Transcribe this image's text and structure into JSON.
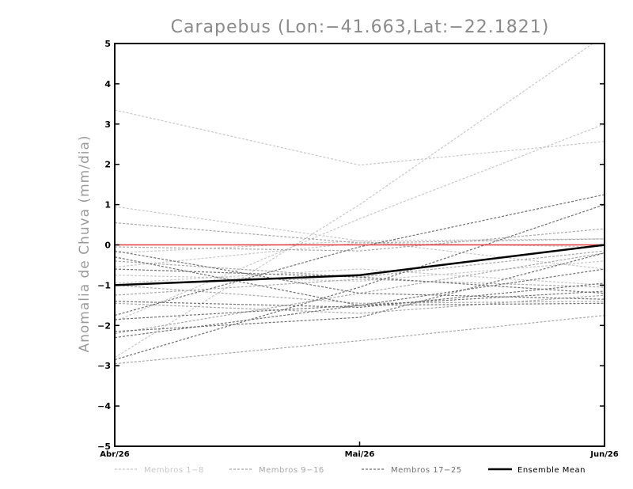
{
  "chart_data": {
    "type": "line",
    "title": "Carapebus (Lon:−41.663,Lat:−22.1821)",
    "ylabel": "Anomalia de Chuva (mm/dia)",
    "xlabel": "",
    "categories": [
      "Abr/26",
      "Mai/26",
      "Jun/26"
    ],
    "ylim": [
      -5,
      5
    ],
    "yticks": [
      -5,
      -4,
      -3,
      -2,
      -1,
      0,
      1,
      2,
      3,
      4,
      5
    ],
    "ytick_labels": [
      "−5",
      "−4",
      "−3",
      "−2",
      "−1",
      "0",
      "1",
      "2",
      "3",
      "4",
      "5"
    ],
    "grid": false,
    "zero_line_color": "#e63b3b",
    "group_colors": {
      "m1_8": "#c8c8c8",
      "m9_16": "#a8a8a8",
      "m17_25": "#707070",
      "mean": "#000000"
    },
    "legend": [
      {
        "name": "Membros 1−8",
        "group": "m1_8",
        "color": "#c8c8c8"
      },
      {
        "name": "Membros 9−16",
        "group": "m9_16",
        "color": "#a8a8a8"
      },
      {
        "name": "Membros 17−25",
        "group": "m17_25",
        "color": "#707070"
      },
      {
        "name": "Ensemble Mean",
        "group": "mean",
        "color": "#000000"
      }
    ],
    "series": [
      {
        "group": "m1_8",
        "values": [
          3.35,
          1.98,
          2.57
        ]
      },
      {
        "group": "m1_8",
        "values": [
          -2.8,
          1.0,
          5.2
        ]
      },
      {
        "group": "m1_8",
        "values": [
          -1.9,
          0.65,
          3.0
        ]
      },
      {
        "group": "m1_8",
        "values": [
          0.95,
          0.1,
          0.15
        ]
      },
      {
        "group": "m1_8",
        "values": [
          -0.2,
          0.1,
          -0.6
        ]
      },
      {
        "group": "m1_8",
        "values": [
          -0.75,
          -0.9,
          -0.4
        ]
      },
      {
        "group": "m1_8",
        "values": [
          -0.55,
          0.05,
          -0.05
        ]
      },
      {
        "group": "m1_8",
        "values": [
          -0.95,
          -0.6,
          -1.0
        ]
      },
      {
        "group": "m9_16",
        "values": [
          0.55,
          0.05,
          0.15
        ]
      },
      {
        "group": "m9_16",
        "values": [
          -2.95,
          -2.38,
          -1.75
        ]
      },
      {
        "group": "m9_16",
        "values": [
          -2.2,
          -1.2,
          -0.2
        ]
      },
      {
        "group": "m9_16",
        "values": [
          -1.25,
          -0.85,
          -1.05
        ]
      },
      {
        "group": "m9_16",
        "values": [
          -1.0,
          -1.45,
          -1.4
        ]
      },
      {
        "group": "m9_16",
        "values": [
          -0.05,
          -0.15,
          0.4
        ]
      },
      {
        "group": "m9_16",
        "values": [
          -1.45,
          -1.7,
          -1.25
        ]
      },
      {
        "group": "m9_16",
        "values": [
          -0.4,
          -0.8,
          -0.15
        ]
      },
      {
        "group": "m17_25",
        "values": [
          -2.85,
          -1.05,
          1.0
        ]
      },
      {
        "group": "m17_25",
        "values": [
          -1.75,
          -0.05,
          1.25
        ]
      },
      {
        "group": "m17_25",
        "values": [
          -2.3,
          -1.5,
          -0.6
        ]
      },
      {
        "group": "m17_25",
        "values": [
          -0.3,
          -1.5,
          -1.15
        ]
      },
      {
        "group": "m17_25",
        "values": [
          -1.4,
          -1.55,
          -0.95
        ]
      },
      {
        "group": "m17_25",
        "values": [
          -0.15,
          -1.2,
          -1.35
        ]
      },
      {
        "group": "m17_25",
        "values": [
          -2.15,
          -1.8,
          -0.2
        ]
      },
      {
        "group": "m17_25",
        "values": [
          -1.85,
          -1.5,
          -1.45
        ]
      },
      {
        "group": "m17_25",
        "values": [
          -0.6,
          -0.8,
          -1.2
        ]
      },
      {
        "group": "mean",
        "name": "Ensemble Mean",
        "values": [
          -1.0,
          -0.75,
          0.0
        ]
      }
    ]
  }
}
